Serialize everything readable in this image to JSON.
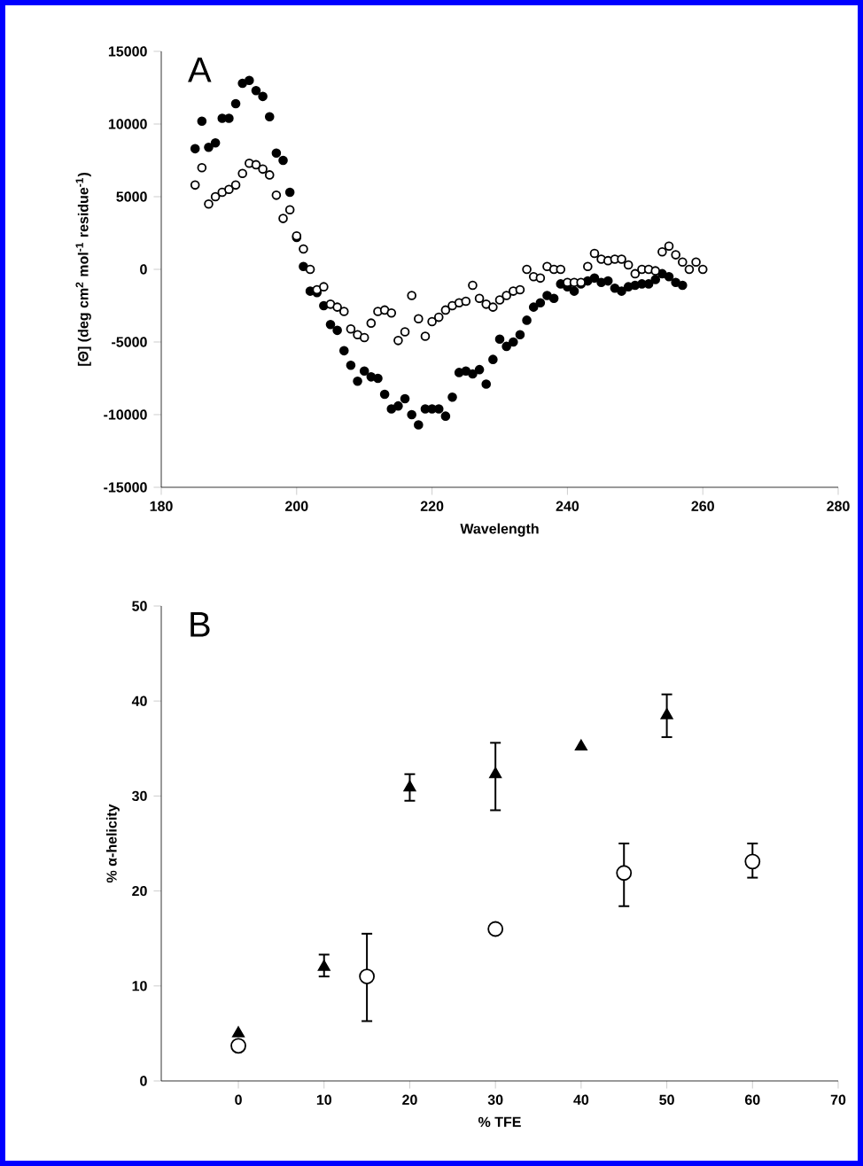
{
  "chart_data": [
    {
      "type": "scatter",
      "title": "A",
      "xlabel": "Wavelength",
      "ylabel": "[Θ] (deg cm$^{2}$ mol$^{-1}$ residue$^{-1}$)",
      "xlim": [
        180,
        280
      ],
      "xticks": [
        180,
        200,
        220,
        240,
        260,
        280
      ],
      "ylim": [
        -15000,
        15000
      ],
      "yticks": [
        -15000,
        -10000,
        -5000,
        0,
        5000,
        10000,
        15000
      ],
      "marker": "circle",
      "series": [
        {
          "color": "#000000",
          "x": [
            185,
            186,
            187,
            188,
            189,
            190,
            191,
            192,
            193,
            194,
            195,
            196,
            197,
            198,
            199,
            200,
            201,
            202,
            203,
            204,
            205,
            206,
            207,
            208,
            209,
            210,
            211,
            212,
            213,
            214,
            215,
            216,
            217,
            218,
            219,
            220,
            221,
            222,
            223,
            224,
            225,
            226,
            227,
            228,
            229,
            230,
            231,
            232,
            233,
            234,
            235,
            236,
            237,
            238,
            239,
            240,
            241,
            242,
            243,
            244,
            245,
            246,
            247,
            248,
            249,
            250,
            251,
            252,
            253,
            254,
            255,
            256,
            257
          ],
          "values": [
            8300,
            10200,
            8400,
            8700,
            10400,
            10400,
            11400,
            12800,
            13000,
            12300,
            11900,
            10500,
            8000,
            7500,
            5300,
            2200,
            200,
            -1500,
            -1600,
            -2500,
            -3800,
            -4200,
            -5600,
            -6600,
            -7700,
            -7000,
            -7400,
            -7500,
            -8600,
            -9600,
            -9400,
            -8900,
            -10000,
            -10700,
            -9600,
            -9600,
            -9600,
            -10100,
            -8800,
            -7100,
            -7000,
            -7200,
            -6900,
            -7900,
            -6200,
            -4800,
            -5300,
            -5000,
            -4500,
            -3500,
            -2600,
            -2300,
            -1800,
            -2000,
            -1000,
            -1200,
            -1500,
            -1000,
            -800,
            -600,
            -900,
            -800,
            -1300,
            -1500,
            -1200,
            -1100,
            -1000,
            -1000,
            -700,
            -300,
            -500,
            -900,
            -1100
          ]
        },
        {
          "color": "#ffffff",
          "x": [
            185,
            186,
            187,
            188,
            189,
            190,
            191,
            192,
            193,
            194,
            195,
            196,
            197,
            198,
            199,
            200,
            201,
            202,
            203,
            204,
            205,
            206,
            207,
            208,
            209,
            210,
            211,
            212,
            213,
            214,
            215,
            216,
            217,
            218,
            219,
            220,
            221,
            222,
            223,
            224,
            225,
            226,
            227,
            228,
            229,
            230,
            231,
            232,
            233,
            234,
            235,
            236,
            237,
            238,
            239,
            240,
            241,
            242,
            243,
            244,
            245,
            246,
            247,
            248,
            249,
            250,
            251,
            252,
            253,
            254,
            255,
            256,
            257,
            258,
            259,
            260
          ],
          "values": [
            5800,
            7000,
            4500,
            5000,
            5300,
            5500,
            5800,
            6600,
            7300,
            7200,
            6900,
            6500,
            5100,
            3500,
            4100,
            2300,
            1400,
            0,
            -1400,
            -1200,
            -2400,
            -2600,
            -2900,
            -4100,
            -4500,
            -4700,
            -3700,
            -2900,
            -2800,
            -3000,
            -4900,
            -4300,
            -1800,
            -3400,
            -4600,
            -3600,
            -3300,
            -2800,
            -2500,
            -2300,
            -2200,
            -1100,
            -2000,
            -2400,
            -2600,
            -2100,
            -1800,
            -1500,
            -1400,
            0,
            -500,
            -600,
            200,
            0,
            0,
            -900,
            -900,
            -900,
            200,
            1100,
            700,
            600,
            700,
            700,
            300,
            -300,
            0,
            0,
            -100,
            1200,
            1600,
            1000,
            500,
            0,
            500,
            0
          ]
        }
      ]
    },
    {
      "type": "scatter",
      "title": "B",
      "xlabel": "% TFE",
      "ylabel": "% α-helicity",
      "xlim": [
        -9,
        70
      ],
      "xticks": [
        0,
        10,
        20,
        30,
        40,
        50,
        60,
        70
      ],
      "ylim": [
        0,
        50
      ],
      "yticks": [
        0,
        10,
        20,
        30,
        40,
        50
      ],
      "series": [
        {
          "color": "#000000",
          "marker": "triangle",
          "x": [
            0,
            10,
            20,
            30,
            40,
            50
          ],
          "values": [
            5.0,
            12.0,
            30.9,
            32.3,
            35.2,
            38.5
          ],
          "errors": [
            null,
            [
              11.0,
              13.3
            ],
            [
              29.5,
              32.3
            ],
            [
              28.5,
              35.6
            ],
            null,
            [
              36.2,
              40.7
            ]
          ]
        },
        {
          "color": "#ffffff",
          "marker": "circle",
          "x": [
            0,
            15,
            30,
            45,
            60
          ],
          "values": [
            3.7,
            11.0,
            16.0,
            21.9,
            23.1
          ],
          "errors": [
            null,
            [
              6.3,
              15.5
            ],
            null,
            [
              18.4,
              25.0
            ],
            [
              21.4,
              25.0
            ]
          ]
        }
      ]
    }
  ]
}
